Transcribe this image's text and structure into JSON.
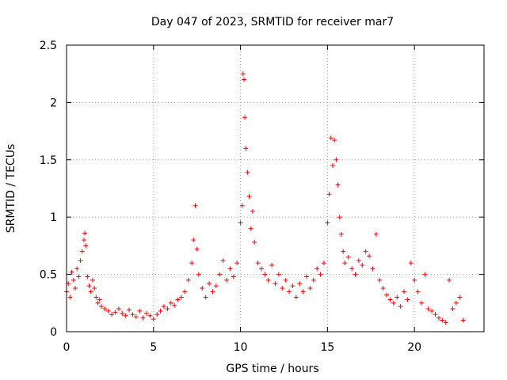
{
  "chart_data": {
    "type": "scatter",
    "title": "Day 047 of 2023, SRMTID for receiver mar7",
    "xlabel": "GPS time / hours",
    "ylabel": "SRMTID / TECUs",
    "xlim": [
      0,
      24
    ],
    "ylim": [
      0,
      2.5
    ],
    "xticks": [
      0,
      5,
      10,
      15,
      20
    ],
    "xtick_labels": [
      "0",
      "5",
      "10",
      "15",
      "20"
    ],
    "yticks": [
      0,
      0.5,
      1,
      1.5,
      2,
      2.5
    ],
    "ytick_labels": [
      "0",
      "0.5",
      "1",
      "1.5",
      "2",
      "2.5"
    ],
    "grid": true,
    "marker": "+",
    "color": "#ff0000",
    "series": [
      {
        "name": "SRMTID",
        "x": [
          0.0,
          0.1,
          0.2,
          0.3,
          0.4,
          0.5,
          0.6,
          0.7,
          0.8,
          0.9,
          1.0,
          1.05,
          1.1,
          1.2,
          1.3,
          1.4,
          1.5,
          1.6,
          1.7,
          1.8,
          1.9,
          2.0,
          2.2,
          2.4,
          2.6,
          2.8,
          3.0,
          3.2,
          3.4,
          3.6,
          3.8,
          4.0,
          4.2,
          4.4,
          4.6,
          4.8,
          5.0,
          5.2,
          5.4,
          5.6,
          5.8,
          6.0,
          6.2,
          6.4,
          6.6,
          6.8,
          7.0,
          7.2,
          7.3,
          7.4,
          7.5,
          7.6,
          7.8,
          8.0,
          8.2,
          8.4,
          8.6,
          8.8,
          9.0,
          9.2,
          9.4,
          9.6,
          9.8,
          10.0,
          10.1,
          10.15,
          10.2,
          10.25,
          10.3,
          10.4,
          10.5,
          10.6,
          10.7,
          10.8,
          11.0,
          11.2,
          11.4,
          11.6,
          11.8,
          12.0,
          12.2,
          12.4,
          12.6,
          12.8,
          13.0,
          13.2,
          13.4,
          13.6,
          13.8,
          14.0,
          14.2,
          14.4,
          14.6,
          14.8,
          15.0,
          15.1,
          15.2,
          15.3,
          15.4,
          15.5,
          15.6,
          15.7,
          15.8,
          15.9,
          16.0,
          16.2,
          16.4,
          16.6,
          16.8,
          17.0,
          17.2,
          17.4,
          17.6,
          17.8,
          18.0,
          18.2,
          18.4,
          18.6,
          18.8,
          19.0,
          19.2,
          19.4,
          19.6,
          19.8,
          20.0,
          20.2,
          20.4,
          20.6,
          20.8,
          21.0,
          21.2,
          21.4,
          21.6,
          21.8,
          22.0,
          22.2,
          22.4,
          22.6,
          22.8
        ],
        "y": [
          0.35,
          0.42,
          0.3,
          0.52,
          0.45,
          0.38,
          0.55,
          0.48,
          0.62,
          0.7,
          0.8,
          0.86,
          0.75,
          0.48,
          0.4,
          0.35,
          0.45,
          0.38,
          0.3,
          0.25,
          0.28,
          0.22,
          0.2,
          0.18,
          0.15,
          0.17,
          0.2,
          0.16,
          0.14,
          0.19,
          0.15,
          0.13,
          0.18,
          0.12,
          0.16,
          0.14,
          0.11,
          0.15,
          0.18,
          0.22,
          0.2,
          0.25,
          0.23,
          0.28,
          0.3,
          0.35,
          0.45,
          0.6,
          0.8,
          1.1,
          0.72,
          0.5,
          0.38,
          0.3,
          0.42,
          0.35,
          0.4,
          0.5,
          0.62,
          0.45,
          0.55,
          0.48,
          0.6,
          0.95,
          1.1,
          2.25,
          2.2,
          1.87,
          1.6,
          1.39,
          1.18,
          0.9,
          1.05,
          0.78,
          0.6,
          0.55,
          0.5,
          0.45,
          0.58,
          0.42,
          0.5,
          0.38,
          0.45,
          0.35,
          0.4,
          0.3,
          0.42,
          0.35,
          0.48,
          0.38,
          0.45,
          0.55,
          0.5,
          0.6,
          0.95,
          1.2,
          1.69,
          1.45,
          1.67,
          1.5,
          1.28,
          1.0,
          0.85,
          0.7,
          0.6,
          0.65,
          0.55,
          0.5,
          0.62,
          0.58,
          0.7,
          0.66,
          0.55,
          0.85,
          0.45,
          0.38,
          0.32,
          0.28,
          0.25,
          0.3,
          0.22,
          0.35,
          0.28,
          0.6,
          0.45,
          0.35,
          0.25,
          0.5,
          0.2,
          0.18,
          0.15,
          0.12,
          0.1,
          0.08,
          0.45,
          0.2,
          0.25,
          0.3,
          0.1
        ]
      }
    ]
  }
}
